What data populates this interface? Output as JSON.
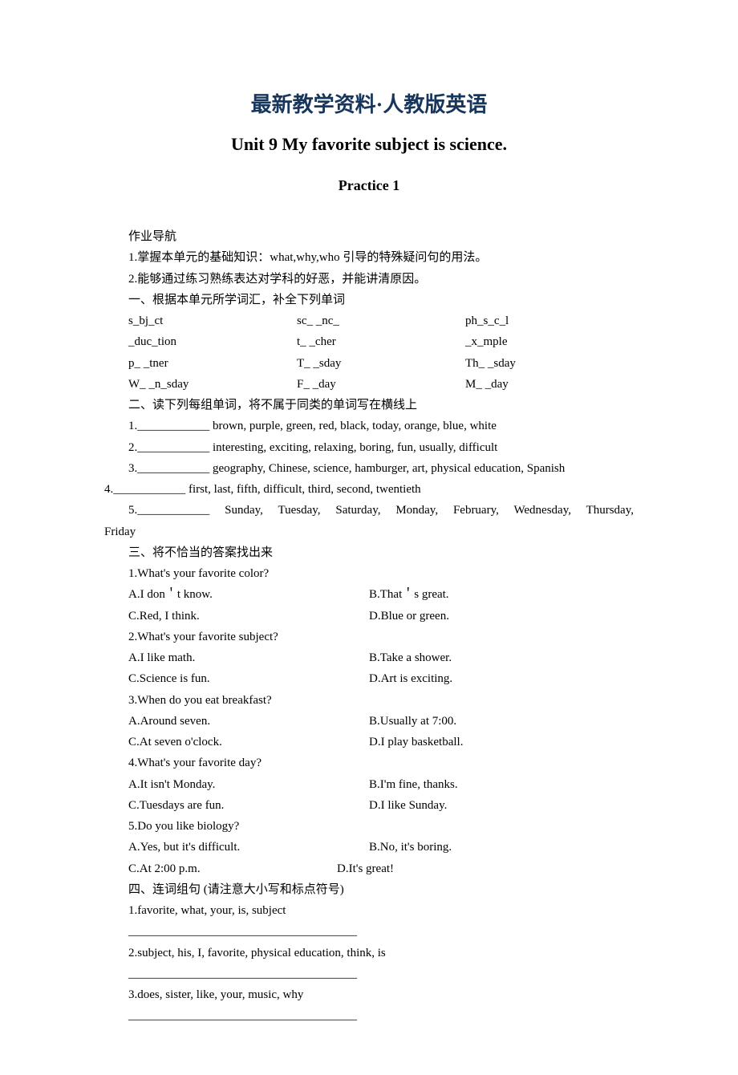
{
  "header_title": "最新教学资料·人教版英语",
  "unit_title": "Unit 9    My favorite subject is science.",
  "practice_title": "Practice 1",
  "nav": "作业导航",
  "intro1": "1.掌握本单元的基础知识：what,why,who 引导的特殊疑问句的用法。",
  "intro2": "2.能够通过练习熟练表达对学科的好恶，并能讲清原因。",
  "section1_title": "一、根据本单元所学词汇，补全下列单词",
  "s1": {
    "r1c1": "s_bj_ct",
    "r1c2": "sc_ _nc_",
    "r1c3": "ph_s_c_l",
    "r2c1": "_duc_tion",
    "r2c2": "t_ _cher",
    "r2c3": "_x_mple",
    "r3c1": "p_ _tner",
    "r3c2": "T_ _sday",
    "r3c3": "Th_ _sday",
    "r4c1": "W_ _n_sday",
    "r4c2": "F_ _day",
    "r4c3": "M_ _day"
  },
  "section2_title": "二、读下列每组单词，将不属于同类的单词写在横线上",
  "s2": {
    "q1": "1.____________     brown, purple, green, red, black, today, orange, blue, white",
    "q2": "2.____________     interesting, exciting, relaxing, boring, fun, usually, difficult",
    "q3": "3.____________     geography, Chinese, science, hamburger, art, physical education, Spanish",
    "q4": "4.____________     first, last, fifth, difficult, third, second, twentieth",
    "q5a": "5.____________    Sunday,  Tuesday,  Saturday,  Monday,  February,  Wednesday,  Thursday,",
    "q5b": "Friday"
  },
  "section3_title": "三、将不恰当的答案找出来",
  "s3": {
    "q1": "1.What's your favorite color?",
    "q1a": "A.I don＇t know.",
    "q1b": "B.That＇s great.",
    "q1c": "C.Red, I think.",
    "q1d": "D.Blue or green.",
    "q2": "2.What's your favorite subject?",
    "q2a": "A.I like math.",
    "q2b": "B.Take a shower.",
    "q2c": "C.Science is fun.",
    "q2d": "D.Art is exciting.",
    "q3": "3.When do you eat breakfast?",
    "q3a": "A.Around seven.",
    "q3b": "B.Usually at 7:00.",
    "q3c": "C.At seven o'clock.",
    "q3d": "D.I play basketball.",
    "q4": "4.What's your favorite day?",
    "q4a": "A.It isn't Monday.",
    "q4b": "B.I'm fine, thanks.",
    "q4c": "C.Tuesdays are fun.",
    "q4d": "D.I like Sunday.",
    "q5": "5.Do you like biology?",
    "q5a": "A.Yes, but it's difficult.",
    "q5b": "B.No, it's boring.",
    "q5c": "C.At 2:00 p.m.",
    "q5d": "D.It's great!"
  },
  "section4_title": "四、连词组句  (请注意大小写和标点符号)",
  "s4": {
    "q1": "1.favorite, what, your, is, subject",
    "q2": "2.subject, his, I, favorite, physical education, think, is",
    "q3": "3.does, sister, like, your, music, why",
    "line": "______________________________________"
  }
}
